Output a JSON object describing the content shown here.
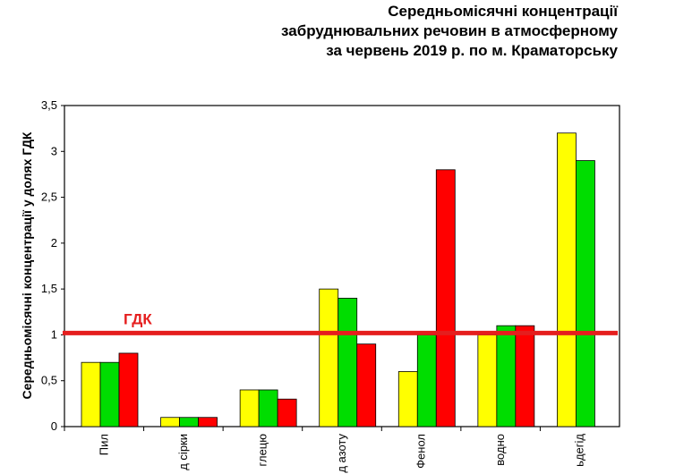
{
  "chart_data": {
    "type": "bar",
    "title_lines": [
      "Середньомісячні концентрації",
      "забруднювальних  речовин  в атмосферному",
      "за червень 2019 р. по м. Краматорську"
    ],
    "ylabel": "Середньомісячні концентрації у  долях ГДК",
    "ylim": [
      0,
      3.5
    ],
    "yticks": [
      "0",
      "0,5",
      "1",
      "1,5",
      "2",
      "2,5",
      "3",
      "3,5"
    ],
    "categories": [
      "Пил",
      "д сірки",
      "глецю",
      "д азоту",
      "Фенол",
      "водно",
      "ьдегід"
    ],
    "series": [
      {
        "values": [
          0.7,
          0.1,
          0.4,
          1.5,
          0.6,
          1.0,
          3.2
        ],
        "color": "#ffff00"
      },
      {
        "values": [
          0.7,
          0.1,
          0.4,
          1.4,
          1.0,
          1.1,
          2.9
        ],
        "color": "#00dd00"
      },
      {
        "values": [
          0.8,
          0.1,
          0.3,
          0.9,
          2.8,
          1.1,
          null
        ],
        "color": "#ff0000"
      }
    ],
    "reference_line": {
      "label": "ГДК",
      "value": 1.0,
      "color": "#e51e1e"
    },
    "grid": false,
    "legend": "none"
  }
}
